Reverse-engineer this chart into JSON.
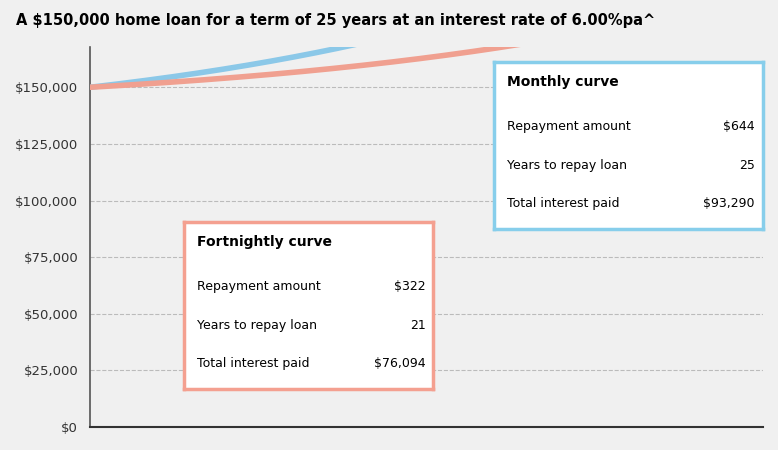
{
  "title": "A $150,000 home loan for a term of 25 years at an interest rate of 6.00%pa^",
  "loan_amount": 150000,
  "annual_rate": 0.06,
  "monthly_term_years": 25,
  "fortnightly_term_years": 21,
  "monthly_repayment": 644,
  "fortnightly_repayment": 322,
  "monthly_interest_total": 93290,
  "fortnightly_interest_total": 76094,
  "monthly_color": "#8BC8E8",
  "fortnightly_color": "#F0A090",
  "background_color": "#F0F0F0",
  "plot_background": "#F0F0F0",
  "ylim": [
    0,
    168000
  ],
  "xlim_years": 27,
  "yticks": [
    0,
    25000,
    50000,
    75000,
    100000,
    125000,
    150000
  ],
  "monthly_box_label": "Monthly curve",
  "fortnightly_box_label": "Fortnightly curve",
  "monthly_box_color": "#87CEEB",
  "fortnightly_box_color": "#F4A090"
}
